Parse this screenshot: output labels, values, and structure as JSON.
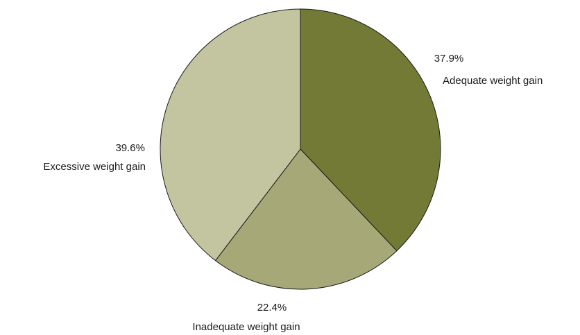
{
  "chart_data": {
    "type": "pie",
    "title": "",
    "slices": [
      {
        "label": "Adequate weight gain",
        "value": 37.9,
        "display": "37.9%",
        "color": "#737a36"
      },
      {
        "label": "Inadequate weight gain",
        "value": 22.4,
        "display": "22.4%",
        "color": "#a6a977"
      },
      {
        "label": "Excessive weight gain",
        "value": 39.6,
        "display": "39.6%",
        "color": "#c2c59f"
      }
    ],
    "start_angle_deg": 0,
    "direction": "clockwise",
    "slice_border_color": "#1a1a1a",
    "legend": "none"
  }
}
